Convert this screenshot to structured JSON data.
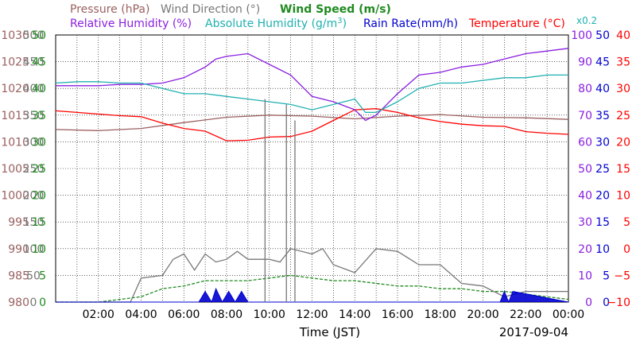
{
  "chart_data": {
    "type": "line",
    "date": "2017-09-04",
    "xlabel": "Time (JST)",
    "x_ticks": [
      "02:00",
      "04:00",
      "06:00",
      "08:00",
      "10:00",
      "12:00",
      "14:00",
      "16:00",
      "18:00",
      "20:00",
      "22:00",
      "00:00"
    ],
    "legend": {
      "pressure": {
        "label": "Pressure (hPa)",
        "color": "#9b5f5f"
      },
      "wind_direction": {
        "label": "Wind Direction (°)",
        "color": "#777777"
      },
      "wind_speed": {
        "label": "Wind Speed (m/s)",
        "color": "#1f8a1f"
      },
      "relative_humidity": {
        "label": "Relative Humidity (%)",
        "color": "#8a1fe0"
      },
      "absolute_humidity": {
        "label": "Absolute Humidity (g/m",
        "sup": "3",
        "tail": ")",
        "color": "#20b0b0"
      },
      "abs_scale_note": {
        "label": "x0.2",
        "color": "#20b0b0"
      },
      "rain_rate": {
        "label": "Rain Rate(mm/h)",
        "color": "#0000d0"
      },
      "temperature": {
        "label": "Temperature (°C)",
        "color": "#ff0000"
      }
    },
    "axes": {
      "pressure": {
        "ticks": [
          "1030",
          "1025",
          "1020",
          "1015",
          "1010",
          "1005",
          "1000",
          "995",
          "990",
          "985",
          "980"
        ],
        "range": [
          980,
          1030
        ]
      },
      "wind_direction": {
        "ticks": [
          "500",
          "450",
          "400",
          "350",
          "300",
          "250",
          "200",
          "150",
          "100",
          "50",
          "0"
        ],
        "range": [
          0,
          500
        ]
      },
      "wind_speed": {
        "ticks": [
          "50",
          "45",
          "40",
          "35",
          "30",
          "25",
          "20",
          "15",
          "10",
          "5",
          "0"
        ],
        "range": [
          0,
          50
        ]
      },
      "relative_humidity": {
        "ticks": [
          "100",
          "90",
          "80",
          "70",
          "60",
          "50",
          "40",
          "30",
          "20",
          "10",
          "0"
        ],
        "range": [
          0,
          100
        ]
      },
      "rain_rate": {
        "ticks": [
          "50",
          "45",
          "40",
          "35",
          "30",
          "25",
          "20",
          "15",
          "10",
          "5",
          "0"
        ],
        "range": [
          0,
          50
        ]
      },
      "temperature": {
        "ticks": [
          "40",
          "35",
          "30",
          "25",
          "20",
          "15",
          "10",
          "5",
          "0",
          "−5",
          "−10"
        ],
        "range": [
          -10,
          40
        ]
      }
    },
    "grid": true,
    "series": [
      {
        "key": "pressure",
        "color": "#9b5f5f",
        "x": [
          0,
          2,
          4,
          6,
          8,
          10,
          12,
          14,
          16,
          18,
          20,
          22,
          24
        ],
        "y": [
          1012.3,
          1012.1,
          1012.5,
          1013.6,
          1014.6,
          1015.0,
          1014.8,
          1014.3,
          1014.8,
          1015.1,
          1014.6,
          1014.5,
          1014.2
        ]
      },
      {
        "key": "temperature",
        "color": "#ff0000",
        "x": [
          0,
          1,
          2,
          3,
          4,
          5,
          6,
          7,
          8,
          9,
          10,
          11,
          12,
          13,
          14,
          15,
          16,
          17,
          18,
          19,
          20,
          21,
          22,
          23,
          24
        ],
        "y": [
          25.8,
          25.5,
          25.2,
          24.9,
          24.7,
          23.5,
          22.5,
          22.0,
          20.2,
          20.3,
          20.9,
          21.0,
          22.0,
          24.0,
          26.0,
          26.2,
          25.5,
          24.5,
          23.8,
          23.3,
          23.0,
          22.9,
          21.9,
          21.6,
          21.4
        ]
      },
      {
        "key": "relative_humidity",
        "color": "#8a1fe0",
        "x": [
          0,
          1,
          2,
          3,
          4,
          5,
          6,
          7,
          7.5,
          8,
          9,
          10,
          11,
          12,
          13,
          14,
          14.5,
          15,
          16,
          17,
          18,
          19,
          20,
          21,
          22,
          23,
          24
        ],
        "y": [
          81,
          81,
          81,
          81.5,
          81.5,
          82,
          84,
          88,
          91,
          92,
          93,
          89,
          85,
          77,
          75,
          72,
          68,
          70,
          78,
          85,
          86,
          88,
          89,
          91,
          93,
          94,
          95
        ]
      },
      {
        "key": "absolute_humidity",
        "color": "#20b0b0",
        "x": [
          0,
          1,
          2,
          3,
          4,
          5,
          6,
          7,
          8,
          9,
          10,
          11,
          12,
          13,
          14,
          14.5,
          15,
          16,
          17,
          18,
          19,
          20,
          21,
          22,
          23,
          24
        ],
        "y": [
          82,
          82.5,
          82.5,
          82,
          82,
          80,
          78,
          78,
          77,
          76,
          75,
          74,
          72,
          74,
          76,
          71,
          71,
          75,
          80,
          82,
          82,
          83,
          84,
          84,
          85,
          85
        ]
      },
      {
        "key": "wind_speed",
        "color": "#1f8a1f",
        "x": [
          0,
          2,
          4,
          5,
          6,
          7,
          8,
          9,
          10,
          11,
          12,
          13,
          14,
          15,
          16,
          17,
          18,
          19,
          20,
          21,
          22,
          23,
          24
        ],
        "y": [
          0,
          0,
          1,
          2.5,
          3,
          4,
          4,
          4,
          4.5,
          5,
          4.5,
          4,
          4,
          3.5,
          3,
          3,
          2.5,
          2.5,
          2,
          2,
          1.5,
          1,
          0.5
        ]
      },
      {
        "key": "wind_direction",
        "color": "#777777",
        "x": [
          0,
          3.5,
          4,
          5,
          5.5,
          6,
          6.5,
          7,
          7.5,
          8,
          8.5,
          9,
          10,
          10.5,
          11,
          12,
          12.5,
          13,
          14,
          15,
          16,
          17,
          18,
          19,
          20,
          21,
          22,
          23,
          24
        ],
        "y": [
          0,
          0,
          45,
          50,
          80,
          90,
          60,
          90,
          75,
          80,
          95,
          80,
          80,
          75,
          100,
          90,
          100,
          70,
          55,
          100,
          95,
          70,
          70,
          35,
          30,
          10,
          20,
          20,
          20
        ]
      },
      {
        "key": "rain_rate",
        "color": "#0000d0",
        "x": [
          0,
          6.7,
          7.0,
          7.3,
          7.5,
          7.8,
          8.1,
          8.4,
          8.7,
          9.0,
          20.8,
          21.0,
          21.2,
          21.4,
          24
        ],
        "y": [
          0,
          0,
          2,
          0,
          2.5,
          0,
          2,
          0,
          2,
          0,
          0,
          2,
          0,
          2,
          0
        ]
      }
    ],
    "wind_direction_spikes": [
      {
        "x": 9.8,
        "y": 380
      },
      {
        "x": 10.8,
        "y": 370
      },
      {
        "x": 11.2,
        "y": 340
      }
    ]
  }
}
